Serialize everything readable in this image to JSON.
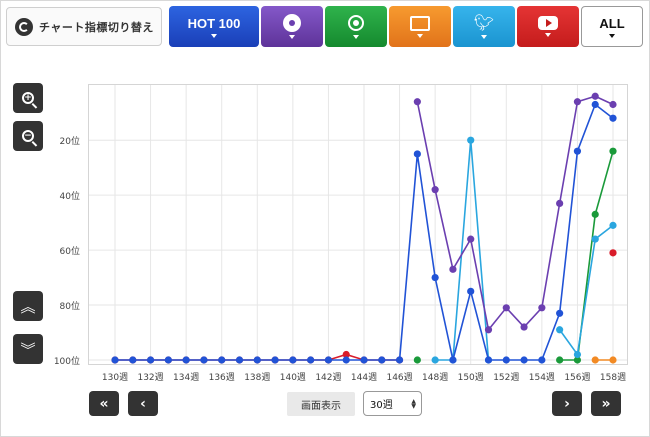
{
  "toolbar": {
    "switch_label": "チャート指標切り替え",
    "hot100_label": "HOT 100",
    "all_label": "ALL"
  },
  "controls": {
    "display_label": "画面表示",
    "period_value": "30週"
  },
  "colors": {
    "hot100": "#2153d6",
    "sales": "#6b3fb0",
    "radio": "#1a9a3a",
    "pc": "#f28a24",
    "twitter": "#2aa6df",
    "youtube": "#d91c2a"
  },
  "chart_data": {
    "type": "line",
    "x_tick_labels": [
      "130週",
      "132週",
      "134週",
      "136週",
      "138週",
      "140週",
      "142週",
      "144週",
      "146週",
      "148週",
      "150週",
      "152週",
      "154週",
      "156週",
      "158週"
    ],
    "y_tick_labels": [
      "20位",
      "40位",
      "60位",
      "80位",
      "100位"
    ],
    "x": [
      130,
      131,
      132,
      133,
      134,
      135,
      136,
      137,
      138,
      139,
      140,
      141,
      142,
      143,
      144,
      145,
      146,
      147,
      148,
      149,
      150,
      151,
      152,
      153,
      154,
      155,
      156,
      157,
      158
    ],
    "xlim": [
      130,
      158
    ],
    "ylim": [
      1,
      100
    ],
    "y_inverted": true,
    "grid": true,
    "series": [
      {
        "key": "youtube",
        "values": [
          100,
          100,
          100,
          100,
          100,
          100,
          100,
          100,
          100,
          100,
          100,
          100,
          100,
          98,
          100,
          100,
          100,
          null,
          null,
          null,
          null,
          null,
          null,
          null,
          null,
          null,
          null,
          null,
          61
        ]
      },
      {
        "key": "radio",
        "values": [
          null,
          null,
          null,
          null,
          null,
          null,
          null,
          null,
          null,
          null,
          null,
          null,
          null,
          null,
          null,
          null,
          null,
          100,
          null,
          null,
          null,
          null,
          null,
          null,
          null,
          100,
          100,
          47,
          24
        ]
      },
      {
        "key": "pc",
        "values": [
          null,
          null,
          null,
          null,
          null,
          null,
          null,
          null,
          null,
          null,
          null,
          null,
          null,
          null,
          null,
          null,
          null,
          null,
          null,
          null,
          null,
          null,
          null,
          null,
          null,
          null,
          null,
          100,
          100
        ]
      },
      {
        "key": "twitter",
        "values": [
          null,
          null,
          null,
          null,
          null,
          null,
          null,
          null,
          null,
          null,
          null,
          null,
          null,
          null,
          null,
          null,
          null,
          null,
          100,
          100,
          20,
          100,
          null,
          null,
          null,
          89,
          98,
          56,
          51
        ]
      },
      {
        "key": "sales",
        "values": [
          null,
          null,
          null,
          null,
          null,
          null,
          null,
          null,
          null,
          null,
          null,
          null,
          null,
          null,
          null,
          null,
          null,
          6,
          38,
          67,
          56,
          89,
          81,
          88,
          81,
          43,
          6,
          4,
          7
        ]
      },
      {
        "key": "hot100",
        "values": [
          100,
          100,
          100,
          100,
          100,
          100,
          100,
          100,
          100,
          100,
          100,
          100,
          100,
          100,
          100,
          100,
          100,
          25,
          70,
          100,
          75,
          100,
          100,
          100,
          100,
          83,
          24,
          7,
          12
        ]
      }
    ]
  }
}
